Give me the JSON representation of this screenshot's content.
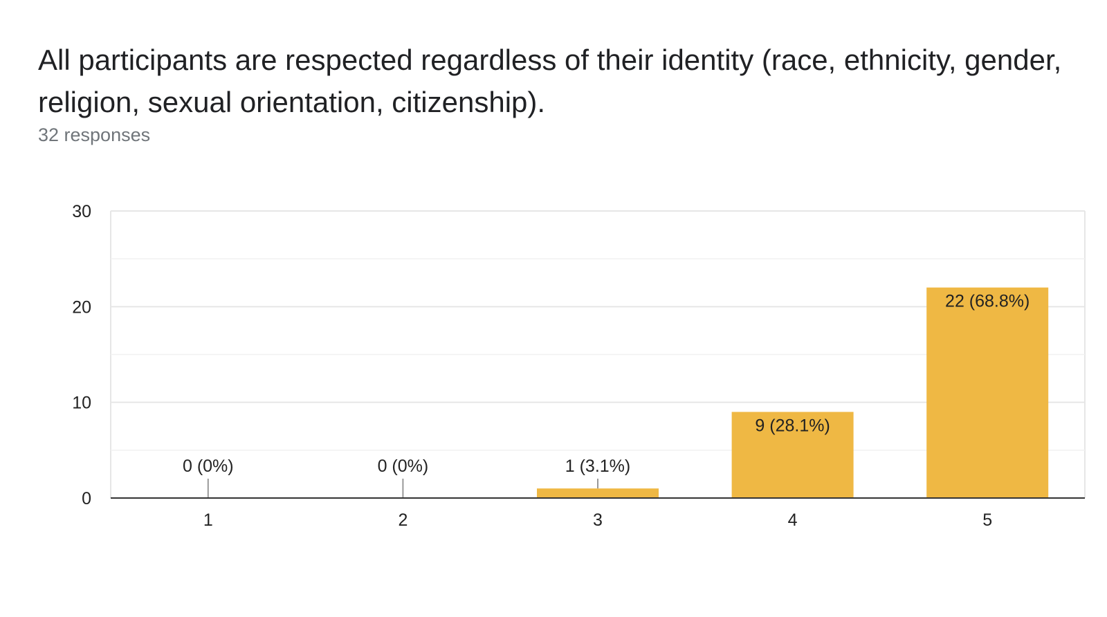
{
  "header": {
    "title": "All participants are respected regardless of their identity (race, ethnicity, gender, religion, sexual orientation, citizenship).",
    "responses": "32 responses"
  },
  "chart_data": {
    "type": "bar",
    "categories": [
      "1",
      "2",
      "3",
      "4",
      "5"
    ],
    "values": [
      0,
      0,
      1,
      9,
      22
    ],
    "data_labels": [
      "0 (0%)",
      "0 (0%)",
      "1 (3.1%)",
      "9 (28.1%)",
      "22 (68.8%)"
    ],
    "ylim": [
      0,
      30
    ],
    "yticks": [
      0,
      10,
      20,
      30
    ],
    "ytick_labels": [
      "0",
      "10",
      "20",
      "30"
    ],
    "grid": true,
    "bar_color": "#efb844"
  }
}
